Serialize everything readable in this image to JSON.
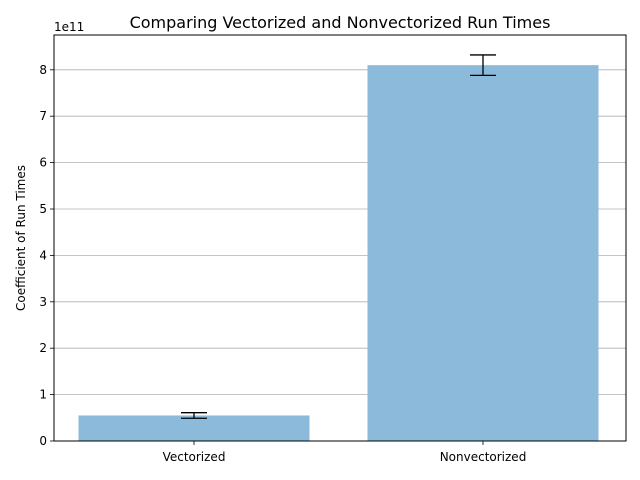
{
  "chart_data": {
    "type": "bar",
    "title": "Comparing Vectorized and Nonvectorized Run Times",
    "xlabel": "",
    "ylabel": "Coefficient of Run Times",
    "offset_text": "1e11",
    "categories": [
      "Vectorized",
      "Nonvectorized"
    ],
    "values": [
      55000000000.0,
      810000000000.0
    ],
    "errors": [
      6000000000.0,
      22000000000.0
    ],
    "ylim": [
      0,
      875000000000.0
    ],
    "yticks": [
      0,
      100000000000.0,
      200000000000.0,
      300000000000.0,
      400000000000.0,
      500000000000.0,
      600000000000.0,
      700000000000.0,
      800000000000.0
    ],
    "ytick_labels": [
      "0",
      "1",
      "2",
      "3",
      "4",
      "5",
      "6",
      "7",
      "8"
    ],
    "grid": "y",
    "bar_color": "#8bbada",
    "legend": "none"
  }
}
